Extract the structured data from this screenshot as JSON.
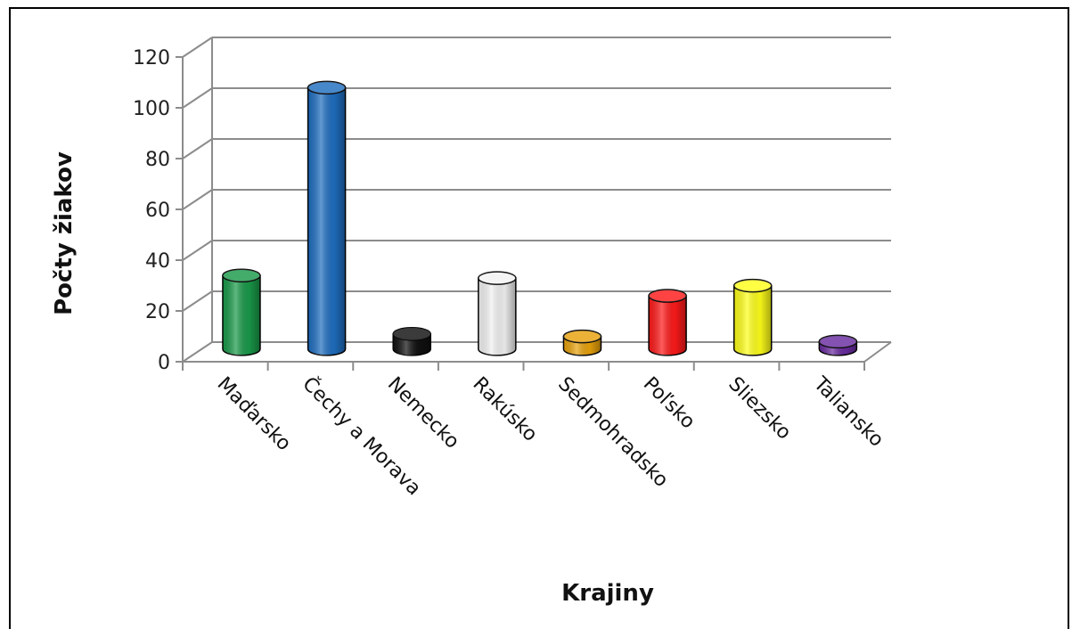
{
  "chart_data": {
    "type": "bar",
    "style": "3d-cylinder",
    "title": "",
    "xlabel": "Krajiny",
    "ylabel": "Počty  žiakov",
    "categories": [
      "Maďarsko",
      "Čechy a Morava",
      "Nemecko",
      "Rakúsko",
      "Sedmohradsko",
      "Poľsko",
      "Sliezsko",
      "Taliansko"
    ],
    "values": [
      29,
      103,
      6,
      28,
      5,
      21,
      25,
      3
    ],
    "colors": [
      "#1a9a4a",
      "#1f6ec0",
      "#111111",
      "#f2f2f2",
      "#e8a20c",
      "#ff1a1a",
      "#ffff1a",
      "#6a2ca0"
    ],
    "ylim": [
      0,
      120
    ],
    "yticks": [
      "0",
      "20",
      "40",
      "60",
      "80",
      "100",
      "120"
    ],
    "grid": true,
    "legend": "none"
  }
}
